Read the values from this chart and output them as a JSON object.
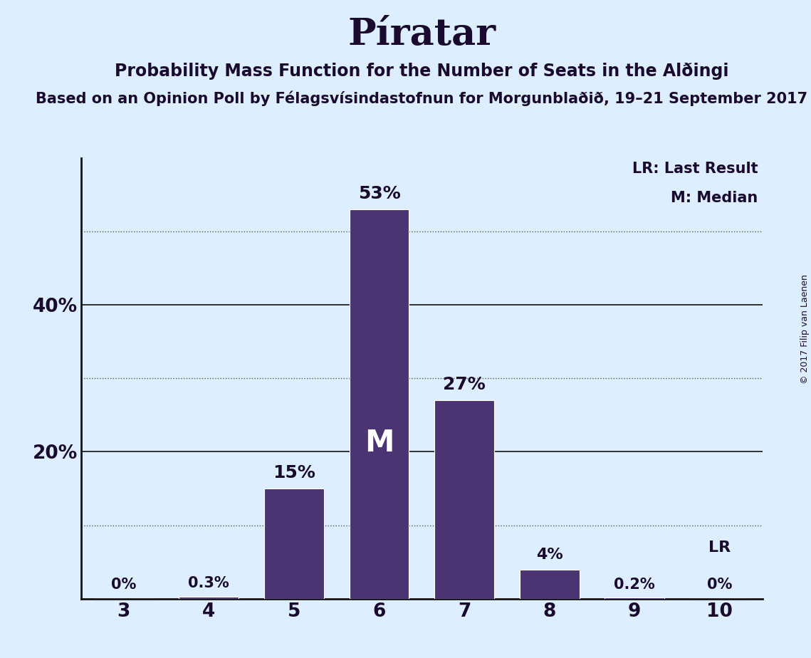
{
  "title": "Píratar",
  "subtitle": "Probability Mass Function for the Number of Seats in the Alðingi",
  "subsubtitle": "Based on an Opinion Poll by Félagsvísindastofnun for Morgunblaðið, 19–21 September 2017",
  "copyright": "© 2017 Filip van Laenen",
  "categories": [
    3,
    4,
    5,
    6,
    7,
    8,
    9,
    10
  ],
  "values": [
    0.0,
    0.3,
    15.0,
    53.0,
    27.0,
    4.0,
    0.2,
    0.0
  ],
  "labels": [
    "0%",
    "0.3%",
    "15%",
    "53%",
    "27%",
    "4%",
    "0.2%",
    "0%"
  ],
  "bar_color": "#4a3572",
  "background_color": "#ddeeff",
  "text_color": "#1a0a2e",
  "median_bar": 6,
  "lr_bar": 10,
  "median_label": "M",
  "lr_label": "LR",
  "legend_lr": "LR: Last Result",
  "legend_m": "M: Median",
  "dotted_yticks": [
    10,
    30,
    50
  ],
  "solid_yticks": [
    20,
    40
  ],
  "ymax": 60,
  "ymin": 0,
  "bar_width": 0.7
}
